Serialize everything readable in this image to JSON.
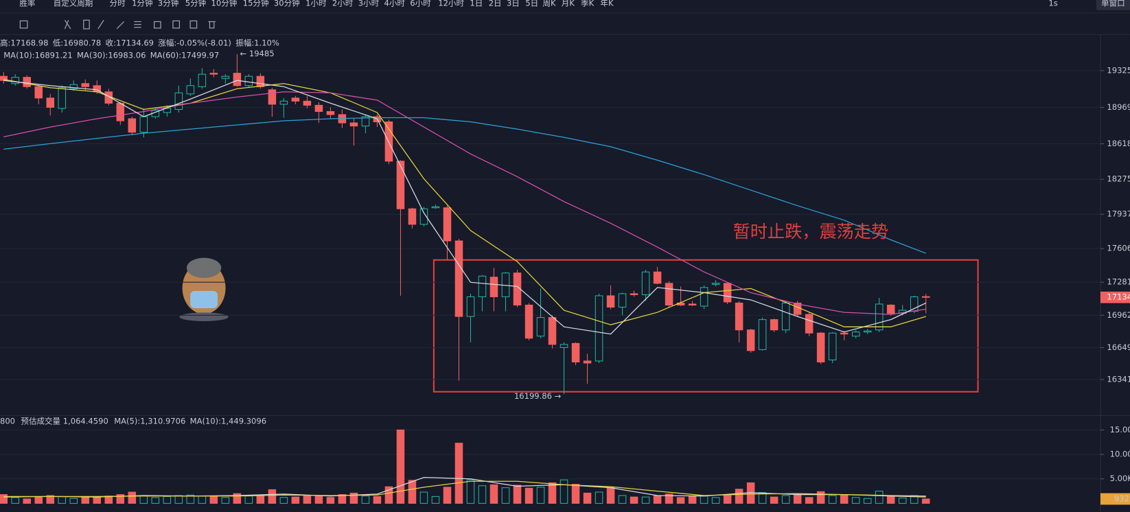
{
  "toolbar": {
    "winrate": "胜率",
    "custom": "自定义周期",
    "periods": [
      "分时",
      "1分钟",
      "3分钟",
      "5分钟",
      "10分钟",
      "15分钟",
      "30分钟",
      "1小时",
      "2小时",
      "3小时",
      "4小时",
      "6小时",
      "12小时",
      "1日",
      "2日",
      "3日",
      "5日",
      "周K",
      "月K",
      "季K",
      "年K"
    ],
    "active_period": 7,
    "speed": "1s",
    "window": "单窗口"
  },
  "info": [
    {
      "label": "高:",
      "value": "17168.98"
    },
    {
      "label": "低:",
      "value": "16980.78"
    },
    {
      "label": "收:",
      "value": "17134.69"
    },
    {
      "label": "涨幅:",
      "value": "-0.05%(-8.01)"
    },
    {
      "label": "振幅:",
      "value": "1.10%"
    }
  ],
  "chart_data": {
    "type": "candlestick",
    "annotation": "暂时止跌，震荡走势",
    "high_marker": "← 19485",
    "low_marker": "16199.86 →",
    "price_tag": "17134.",
    "up_color": "#1fb5a0",
    "down_color": "#f0605f",
    "ylim": [
      16042,
      19694
    ],
    "yticks": [
      {
        "value": 19325,
        "label": "19325."
      },
      {
        "value": 18969,
        "label": "18969."
      },
      {
        "value": 18618,
        "label": "18618."
      },
      {
        "value": 18275,
        "label": "18275."
      },
      {
        "value": 17937,
        "label": "17937."
      },
      {
        "value": 17606,
        "label": "17606."
      },
      {
        "value": 17281,
        "label": "17281."
      },
      {
        "value": 16962,
        "label": "16962."
      },
      {
        "value": 16649,
        "label": "16649."
      },
      {
        "value": 16341,
        "label": "16341."
      }
    ],
    "grid": true,
    "open": [
      19270,
      19200,
      19260,
      19170,
      19060,
      18960,
      19150,
      19200,
      19180,
      19120,
      19010,
      18860,
      18730,
      18880,
      18920,
      18950,
      19100,
      19170,
      19300,
      19250,
      19300,
      19180,
      19270,
      19140,
      19000,
      19060,
      19030,
      18990,
      18930,
      18900,
      18820,
      18790,
      18880,
      18830,
      18450,
      17990,
      17840,
      18000,
      18000,
      17680,
      16950,
      17140,
      17330,
      17140,
      17370,
      17060,
      16760,
      16940,
      16650,
      16690,
      16520,
      16520,
      17150,
      17040,
      17170,
      17160,
      17380,
      17270,
      17080,
      17070,
      17050,
      17260,
      17270,
      17080,
      16820,
      16630,
      16920,
      16820,
      17080,
      16970,
      16790,
      16530,
      16790,
      16760,
      16800,
      16820,
      17060,
      16980,
      17000,
      17142
    ],
    "high": [
      19310,
      19290,
      19280,
      19190,
      19100,
      19180,
      19230,
      19240,
      19230,
      19150,
      19020,
      18880,
      18960,
      18970,
      18990,
      19180,
      19250,
      19350,
      19340,
      19290,
      19485,
      19290,
      19300,
      19160,
      19060,
      19080,
      19080,
      19020,
      18970,
      18950,
      18860,
      18900,
      18900,
      18850,
      18460,
      18000,
      18010,
      18030,
      18020,
      17700,
      17170,
      17350,
      17420,
      17380,
      17400,
      17080,
      17220,
      16960,
      16700,
      16700,
      16590,
      17170,
      17250,
      17180,
      17200,
      17400,
      17430,
      17290,
      17240,
      17100,
      17250,
      17300,
      17280,
      17100,
      16830,
      16940,
      16930,
      17100,
      17100,
      16990,
      16800,
      16800,
      16810,
      16820,
      16830,
      17130,
      17070,
      17060,
      17150,
      17168.98
    ],
    "low": [
      19200,
      19180,
      19150,
      19000,
      18890,
      18920,
      19130,
      19130,
      19100,
      18990,
      18800,
      18700,
      18680,
      18860,
      18880,
      18920,
      19080,
      19150,
      19260,
      19200,
      19170,
      19160,
      19150,
      18880,
      18870,
      19000,
      18960,
      18820,
      18860,
      18770,
      18600,
      18720,
      18780,
      18420,
      17150,
      17800,
      17820,
      17990,
      17500,
      16330,
      16700,
      17000,
      17000,
      17000,
      17040,
      16720,
      16740,
      16640,
      16199.86,
      16480,
      16300,
      16500,
      17020,
      16960,
      17140,
      17100,
      17260,
      17040,
      17050,
      17050,
      17020,
      17240,
      17070,
      16700,
      16600,
      16620,
      16800,
      16790,
      16950,
      16760,
      16490,
      16500,
      16720,
      16740,
      16780,
      16800,
      16960,
      16960,
      16980,
      16980.78
    ],
    "close": [
      19230,
      19260,
      19170,
      19060,
      18970,
      19160,
      19190,
      19170,
      19120,
      19010,
      18840,
      18730,
      18880,
      18940,
      18960,
      19110,
      19180,
      19290,
      19290,
      19270,
      19180,
      19270,
      19170,
      19000,
      19030,
      19030,
      18990,
      18930,
      18900,
      18820,
      18790,
      18880,
      18830,
      18450,
      17990,
      17840,
      17990,
      18010,
      17680,
      16950,
      17140,
      17340,
      17140,
      17370,
      17060,
      16740,
      16940,
      16680,
      16680,
      16510,
      16500,
      17150,
      17040,
      17170,
      17160,
      17380,
      17270,
      17060,
      17060,
      17060,
      17230,
      17270,
      17090,
      16820,
      16620,
      16920,
      16820,
      17080,
      16970,
      16790,
      16510,
      16790,
      16780,
      16800,
      16810,
      17070,
      16980,
      17010,
      17140,
      17134.69
    ],
    "series": [
      {
        "name": "MA(10):16891.21",
        "color": "#e8d43a",
        "x": [
          0,
          4,
          8,
          12,
          16,
          20,
          24,
          28,
          32,
          36,
          40,
          44,
          48,
          52,
          56,
          60,
          64,
          68,
          72,
          76,
          79
        ],
        "values": [
          19240,
          19160,
          19120,
          18950,
          19010,
          19150,
          19200,
          19110,
          18920,
          18280,
          17780,
          17480,
          17010,
          16870,
          16990,
          17180,
          17220,
          17040,
          16850,
          16850,
          16950
        ]
      },
      {
        "name": "MA(30):16983.06",
        "color": "#d84fb0",
        "x": [
          0,
          4,
          8,
          12,
          16,
          20,
          24,
          28,
          32,
          36,
          40,
          44,
          48,
          52,
          56,
          60,
          64,
          68,
          72,
          76,
          79
        ],
        "values": [
          18685,
          18780,
          18860,
          18930,
          19010,
          19070,
          19120,
          19110,
          19040,
          18780,
          18520,
          18300,
          18060,
          17850,
          17620,
          17380,
          17180,
          17070,
          16990,
          16970,
          17020
        ]
      },
      {
        "name": "MA(60):17499.97",
        "color": "#2ba3d6",
        "x": [
          0,
          4,
          8,
          12,
          16,
          20,
          24,
          28,
          32,
          36,
          40,
          44,
          48,
          52,
          56,
          60,
          64,
          68,
          72,
          76,
          79
        ],
        "values": [
          18566,
          18620,
          18670,
          18720,
          18760,
          18800,
          18840,
          18860,
          18870,
          18870,
          18830,
          18760,
          18680,
          18590,
          18460,
          18320,
          18170,
          18020,
          17880,
          17690,
          17560
        ]
      },
      {
        "color": "#d8dbe4",
        "x": [
          0,
          4,
          8,
          12,
          16,
          20,
          24,
          28,
          32,
          36,
          40,
          44,
          48,
          52,
          56,
          60,
          64,
          68,
          72,
          76,
          79
        ],
        "values": [
          19230,
          19180,
          19140,
          18880,
          19050,
          19230,
          19170,
          19010,
          18860,
          17950,
          17280,
          17240,
          16850,
          16780,
          17230,
          17180,
          17110,
          16950,
          16800,
          16920,
          17080
        ]
      }
    ],
    "volume": {
      "head": "800",
      "estimate": "预估成交量 1,064.4590",
      "tag": "932",
      "ylim": [
        0,
        16.03
      ],
      "yticks": [
        {
          "value": 15,
          "label": "15.00"
        },
        {
          "value": 10,
          "label": "10.00"
        },
        {
          "value": 5,
          "label": "5.00K"
        }
      ],
      "values": [
        1.8,
        1.2,
        0.9,
        1.3,
        1.6,
        1.4,
        1.0,
        1.2,
        1.3,
        1.5,
        1.8,
        2.3,
        1.6,
        1.2,
        1.4,
        1.6,
        1.7,
        1.5,
        1.5,
        1.2,
        2.0,
        1.5,
        1.6,
        2.8,
        1.2,
        1.3,
        1.6,
        1.5,
        1.2,
        1.8,
        2.1,
        1.5,
        1.4,
        3.4,
        15.0,
        4.7,
        2.3,
        1.4,
        3.3,
        12.3,
        4.8,
        3.6,
        3.8,
        3.2,
        3.7,
        3.1,
        3.3,
        4.2,
        4.8,
        3.9,
        2.1,
        2.3,
        3.2,
        1.6,
        1.3,
        1.3,
        1.6,
        1.9,
        1.2,
        1.5,
        1.5,
        1.2,
        1.6,
        2.9,
        4.2,
        2.2,
        1.3,
        1.6,
        1.7,
        1.2,
        2.4,
        1.6,
        1.7,
        1.2,
        1.0,
        2.5,
        1.4,
        1.1,
        1.6,
        0.9
      ],
      "series": [
        {
          "name": "MA(5):1,310.9706",
          "color": "#d8dbe4",
          "x": [
            0,
            4,
            8,
            12,
            16,
            20,
            24,
            28,
            32,
            36,
            40,
            44,
            48,
            52,
            56,
            60,
            64,
            68,
            72,
            76,
            79
          ],
          "values": [
            1.3,
            1.4,
            1.3,
            1.6,
            1.5,
            1.6,
            1.9,
            1.5,
            1.9,
            5.3,
            5.0,
            3.5,
            3.8,
            3.2,
            1.6,
            1.5,
            2.2,
            1.8,
            1.8,
            1.5,
            1.3
          ]
        },
        {
          "name": "MA(10):1,449.3096",
          "color": "#e8d43a",
          "x": [
            0,
            4,
            8,
            12,
            16,
            20,
            24,
            28,
            32,
            36,
            40,
            44,
            48,
            52,
            56,
            60,
            64,
            68,
            72,
            76,
            79
          ],
          "values": [
            1.4,
            1.4,
            1.4,
            1.5,
            1.5,
            1.5,
            1.7,
            1.6,
            1.7,
            3.3,
            4.5,
            4.5,
            3.8,
            3.4,
            2.5,
            1.6,
            1.9,
            2.0,
            1.8,
            1.6,
            1.5
          ]
        }
      ]
    }
  }
}
